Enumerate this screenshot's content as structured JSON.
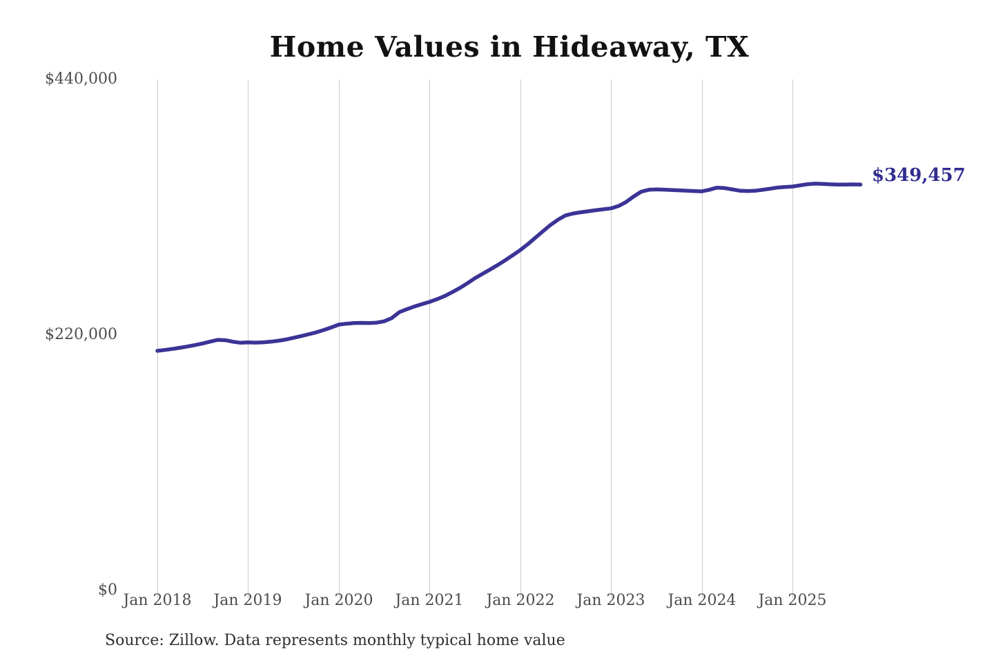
{
  "chart": {
    "title": "Home Values in Hideaway, TX",
    "end_label": "$349,457",
    "source": "Source: Zillow. Data represents monthly typical home value",
    "colors": {
      "line": "#3b3496",
      "grid": "#cbcbcb",
      "axis_text": "#4c4c4c",
      "title_text": "#121212",
      "end_label_text": "#322d91",
      "source_text": "#2e2e2e",
      "bg": "#ffffff"
    }
  },
  "chart_data": {
    "type": "line",
    "title": "Home Values in Hideaway, TX",
    "xlabel": "",
    "ylabel": "",
    "ylim": [
      0,
      440000
    ],
    "y_ticks": [
      0,
      220000,
      440000
    ],
    "y_tick_labels": [
      "$0",
      "$220,000",
      "$440,000"
    ],
    "x_tick_labels": [
      "Jan 2018",
      "Jan 2019",
      "Jan 2020",
      "Jan 2021",
      "Jan 2022",
      "Jan 2023",
      "Jan 2024",
      "Jan 2025"
    ],
    "x_cadence": "monthly",
    "start_month": "2018-01",
    "end_month": "2025-10",
    "grid": "vertical-only",
    "legend_position": "none",
    "end_label": "$349,457",
    "final_value": 349457,
    "series": [
      {
        "name": "Typical home value",
        "values": [
          206300,
          207100,
          208000,
          209000,
          210100,
          211300,
          212700,
          214300,
          215800,
          215500,
          214200,
          213300,
          213600,
          213400,
          213700,
          214200,
          215000,
          216100,
          217500,
          219000,
          220600,
          222200,
          224200,
          226500,
          228900,
          229700,
          230200,
          230400,
          230300,
          230600,
          231800,
          234500,
          239600,
          242200,
          244500,
          246500,
          248500,
          250800,
          253500,
          256800,
          260400,
          264500,
          268800,
          272600,
          276300,
          280200,
          284300,
          288600,
          293100,
          298200,
          303700,
          309300,
          314700,
          319300,
          322900,
          324600,
          325600,
          326500,
          327400,
          328200,
          329000,
          331000,
          334500,
          339200,
          343400,
          345000,
          345300,
          345100,
          344800,
          344500,
          344200,
          343900,
          343600,
          345000,
          346800,
          346500,
          345400,
          344200,
          343900,
          344100,
          344900,
          345900,
          346900,
          347400,
          347800,
          348800,
          349800,
          350300,
          350100,
          349700,
          349500,
          349500,
          349600,
          349457
        ]
      }
    ]
  }
}
